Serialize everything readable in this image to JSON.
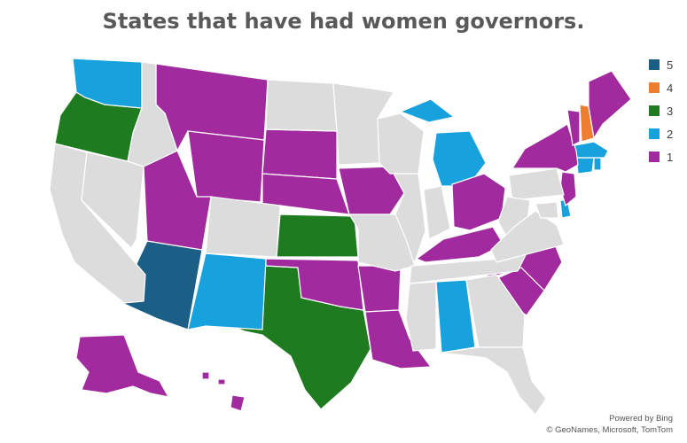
{
  "title": "States that have had women governors.",
  "legend": [
    {
      "label": "5",
      "color": "#1B5E86"
    },
    {
      "label": "4",
      "color": "#ED7D31"
    },
    {
      "label": "3",
      "color": "#1E7B20"
    },
    {
      "label": "2",
      "color": "#17A2DD"
    },
    {
      "label": "1",
      "color": "#A12A9F"
    }
  ],
  "no_data_color": "#DCDCDC",
  "attribution": {
    "powered_by": "Powered by Bing",
    "credits": "© GeoNames, Microsoft, TomTom"
  },
  "states": {
    "Arizona": 5,
    "New Hampshire": 4,
    "Oregon": 3,
    "Kansas": 3,
    "Texas": 3,
    "Washington": 2,
    "New Mexico": 2,
    "Michigan": 2,
    "Alabama": 2,
    "Connecticut": 2,
    "Rhode Island": 2,
    "Massachusetts": 2,
    "Delaware": 2,
    "Montana": 1,
    "Wyoming": 1,
    "Utah": 1,
    "South Dakota": 1,
    "Nebraska": 1,
    "Iowa": 1,
    "Oklahoma": 1,
    "Arkansas": 1,
    "Louisiana": 1,
    "Kentucky": 1,
    "Ohio": 1,
    "North Carolina": 1,
    "South Carolina": 1,
    "New York": 1,
    "New Jersey": 1,
    "Vermont": 1,
    "Maine": 1,
    "Alaska": 1,
    "Hawaii": 1,
    "California": 0,
    "Nevada": 0,
    "Idaho": 0,
    "Colorado": 0,
    "North Dakota": 0,
    "Minnesota": 0,
    "Wisconsin": 0,
    "Illinois": 0,
    "Indiana": 0,
    "Missouri": 0,
    "Tennessee": 0,
    "Mississippi": 0,
    "Georgia": 0,
    "Florida": 0,
    "Pennsylvania": 0,
    "West Virginia": 0,
    "Virginia": 0,
    "Maryland": 0
  }
}
